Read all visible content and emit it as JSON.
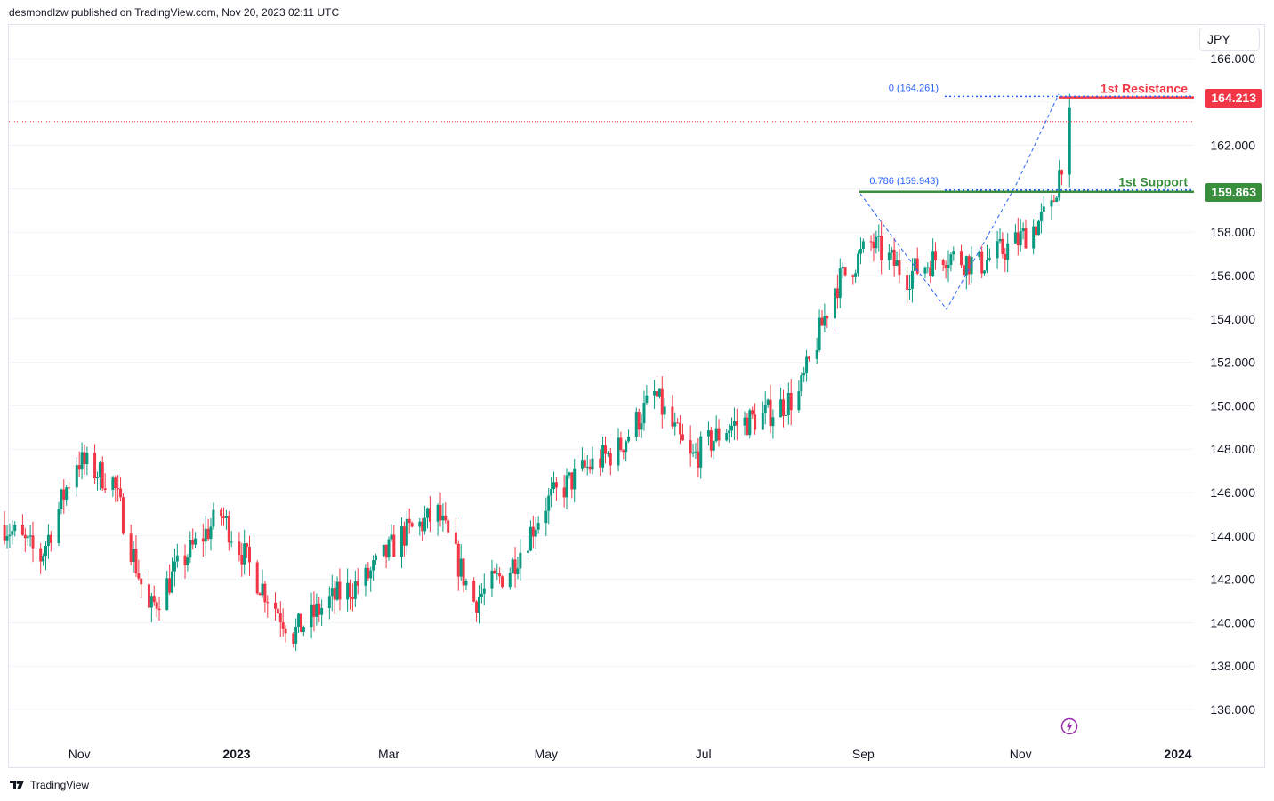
{
  "header": {
    "published_text": "desmondlzw published on TradingView.com, Nov 20, 2023 02:11 UTC"
  },
  "footer": {
    "brand": "TradingView"
  },
  "toolbar": {
    "currency": "JPY"
  },
  "colors": {
    "up": "#089981",
    "down": "#f23645",
    "resistance": "#f23645",
    "support": "#388e3c",
    "fib": "#2962ff",
    "grid": "#f0f3fa",
    "axis_text": "#131722"
  },
  "levels": {
    "resistance": {
      "label": "1st Resistance",
      "value": 164.213,
      "value_text": "164.213"
    },
    "support": {
      "label": "1st Support",
      "value": 159.863,
      "value_text": "159.863"
    },
    "fib_0": {
      "text": "0 (164.261)",
      "value": 164.261
    },
    "fib_786": {
      "text": "0.786 (159.943)",
      "value": 159.943
    }
  },
  "chart_data": {
    "type": "candlestick",
    "symbol_currency": "JPY",
    "y_ticks": [
      "136.000",
      "138.000",
      "140.000",
      "142.000",
      "144.000",
      "146.000",
      "148.000",
      "150.000",
      "152.000",
      "154.000",
      "156.000",
      "158.000",
      "160.000",
      "162.000",
      "164.000",
      "166.000"
    ],
    "x_ticks": [
      "Nov",
      "2023",
      "Mar",
      "May",
      "Jul",
      "Sep",
      "Nov",
      "2024"
    ],
    "ylim": [
      134.5,
      166.5
    ],
    "last_price": 163.1,
    "weekly_close_path": [
      [
        "2022-10-03",
        144.5
      ],
      [
        "2022-10-17",
        143.0
      ],
      [
        "2022-10-31",
        147.5
      ],
      [
        "2022-11-14",
        146.5
      ],
      [
        "2022-11-28",
        140.5
      ],
      [
        "2022-12-12",
        143.0
      ],
      [
        "2022-12-26",
        145.0
      ],
      [
        "2023-01-09",
        142.0
      ],
      [
        "2023-01-23",
        139.5
      ],
      [
        "2023-02-06",
        141.0
      ],
      [
        "2023-02-20",
        142.0
      ],
      [
        "2023-03-06",
        144.0
      ],
      [
        "2023-03-20",
        145.0
      ],
      [
        "2023-04-03",
        141.0
      ],
      [
        "2023-04-17",
        142.5
      ],
      [
        "2023-05-01",
        145.5
      ],
      [
        "2023-05-15",
        147.0
      ],
      [
        "2023-05-29",
        148.0
      ],
      [
        "2023-06-12",
        150.5
      ],
      [
        "2023-06-26",
        147.5
      ],
      [
        "2023-07-10",
        149.0
      ],
      [
        "2023-07-24",
        149.5
      ],
      [
        "2023-08-07",
        150.5
      ],
      [
        "2023-08-21",
        155.5
      ],
      [
        "2023-09-04",
        157.5
      ],
      [
        "2023-09-18",
        156.0
      ],
      [
        "2023-10-02",
        157.0
      ],
      [
        "2023-10-16",
        156.5
      ],
      [
        "2023-10-30",
        157.5
      ],
      [
        "2023-11-13",
        159.0
      ],
      [
        "2023-11-20",
        163.1
      ]
    ],
    "annotations": [
      "0 (164.261)",
      "0.786 (159.943)",
      "1st Resistance",
      "1st Support"
    ]
  }
}
